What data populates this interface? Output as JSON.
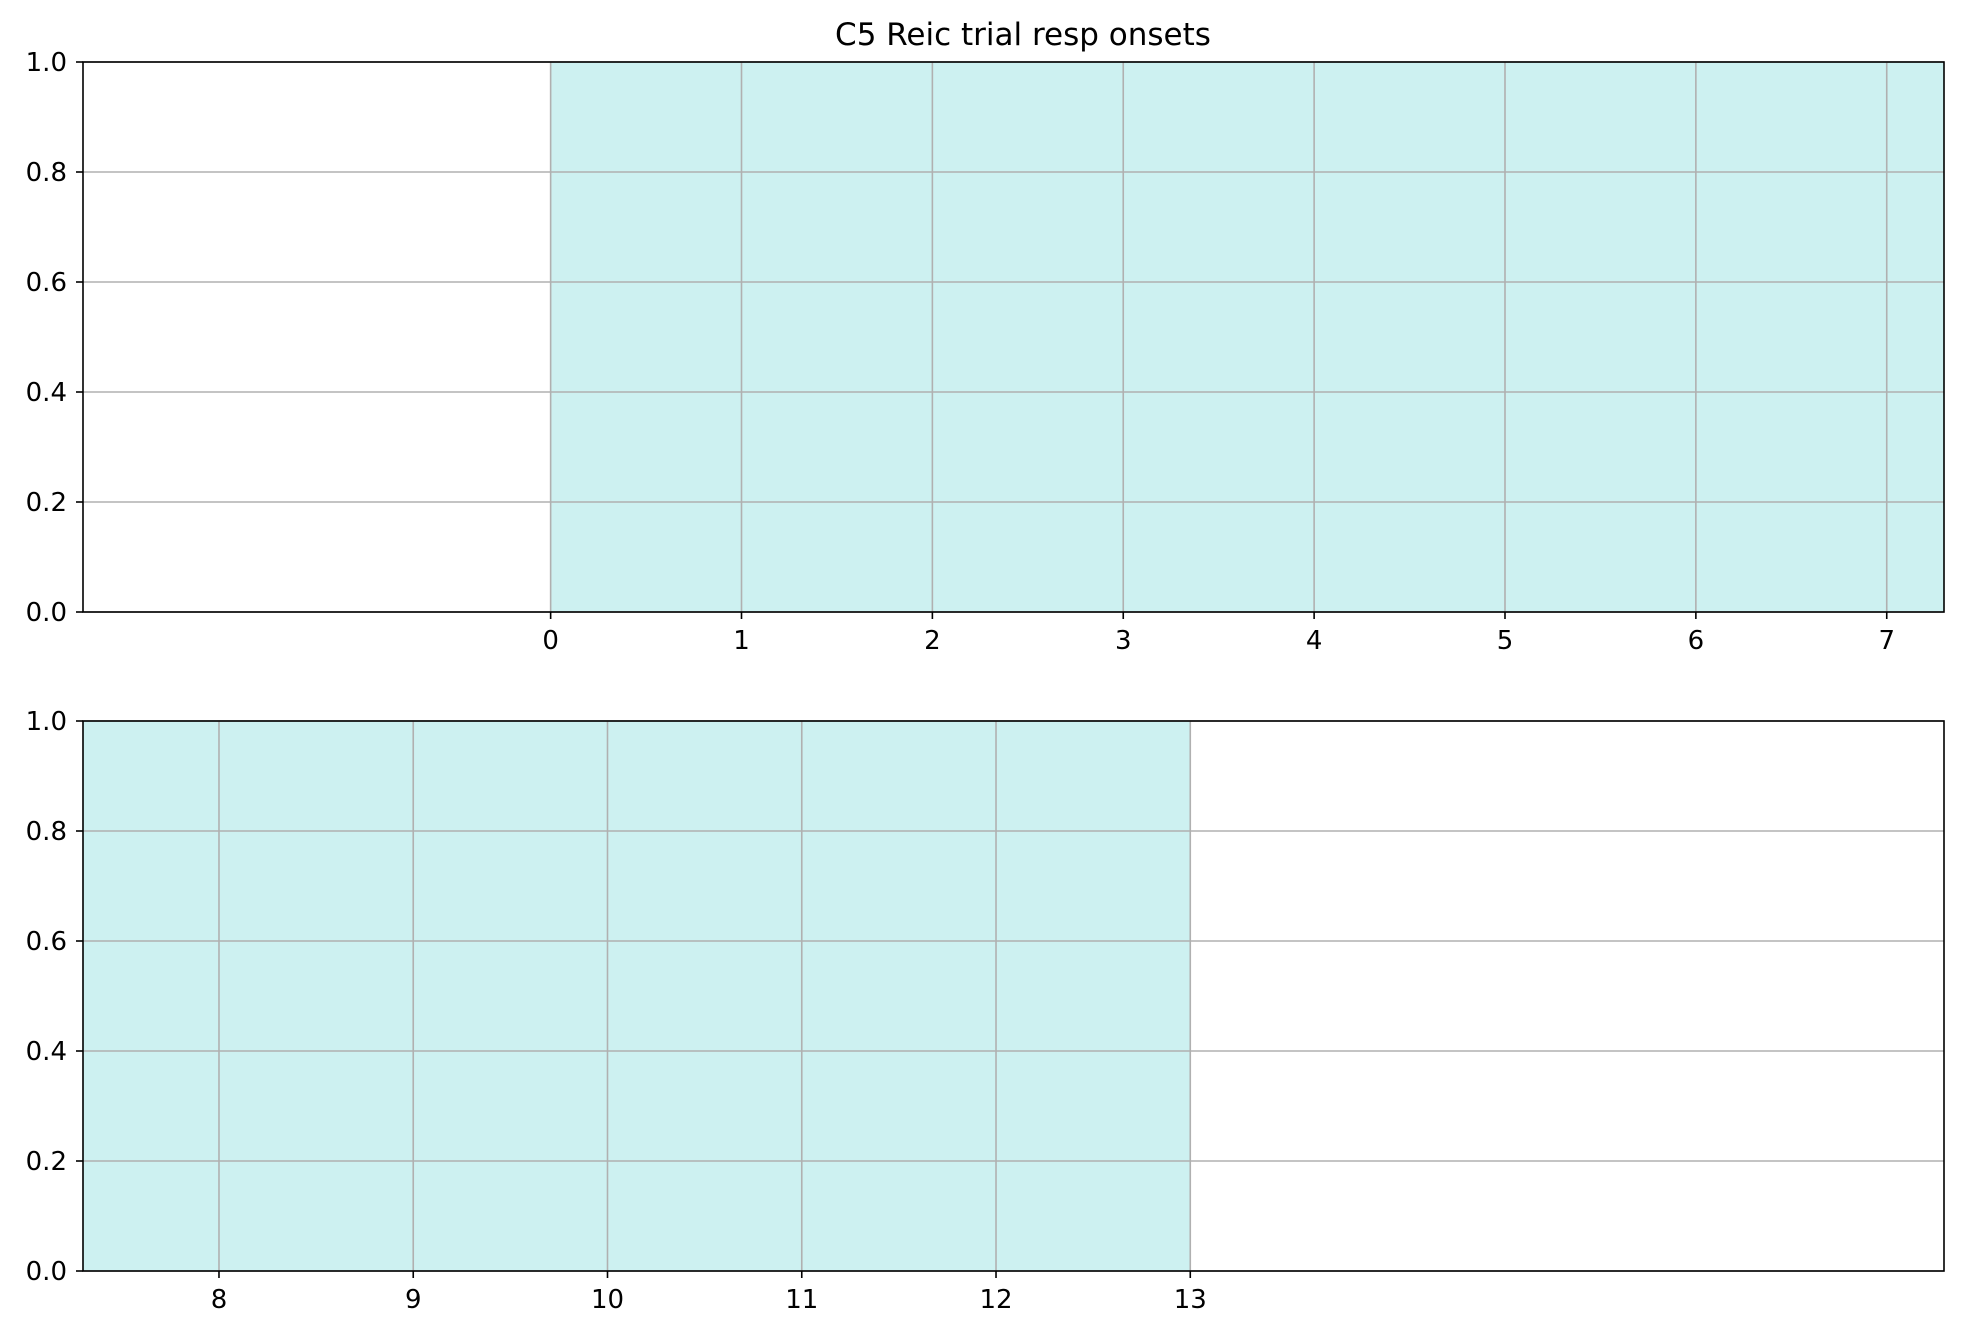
{
  "chart_data": [
    {
      "type": "area",
      "title": "C5 Reic trial resp onsets",
      "xlabel": "",
      "ylabel": "",
      "xlim": [
        -2.45,
        7.3
      ],
      "ylim": [
        0,
        1
      ],
      "x_ticks": [
        0,
        1,
        2,
        3,
        4,
        5,
        6,
        7
      ],
      "y_ticks": [
        0,
        0.2,
        0.4,
        0.6,
        0.8,
        1
      ],
      "grid": true,
      "shaded_regions": [
        {
          "x_start": 0,
          "x_end": 7.3,
          "y_start": 0,
          "y_end": 1,
          "color": "#cdf1f1"
        }
      ]
    },
    {
      "type": "area",
      "title": "",
      "xlabel": "",
      "ylabel": "",
      "xlim": [
        7.3,
        16.88
      ],
      "ylim": [
        0,
        1
      ],
      "x_ticks": [
        8,
        9,
        10,
        11,
        12,
        13
      ],
      "y_ticks": [
        0,
        0.2,
        0.4,
        0.6,
        0.8,
        1
      ],
      "grid": true,
      "shaded_regions": [
        {
          "x_start": 7.3,
          "x_end": 13,
          "y_start": 0,
          "y_end": 1,
          "color": "#cdf1f1"
        }
      ]
    }
  ],
  "colors": {
    "shade": "#cdf1f1",
    "grid": "#b0b0b0",
    "axis": "#000000"
  }
}
